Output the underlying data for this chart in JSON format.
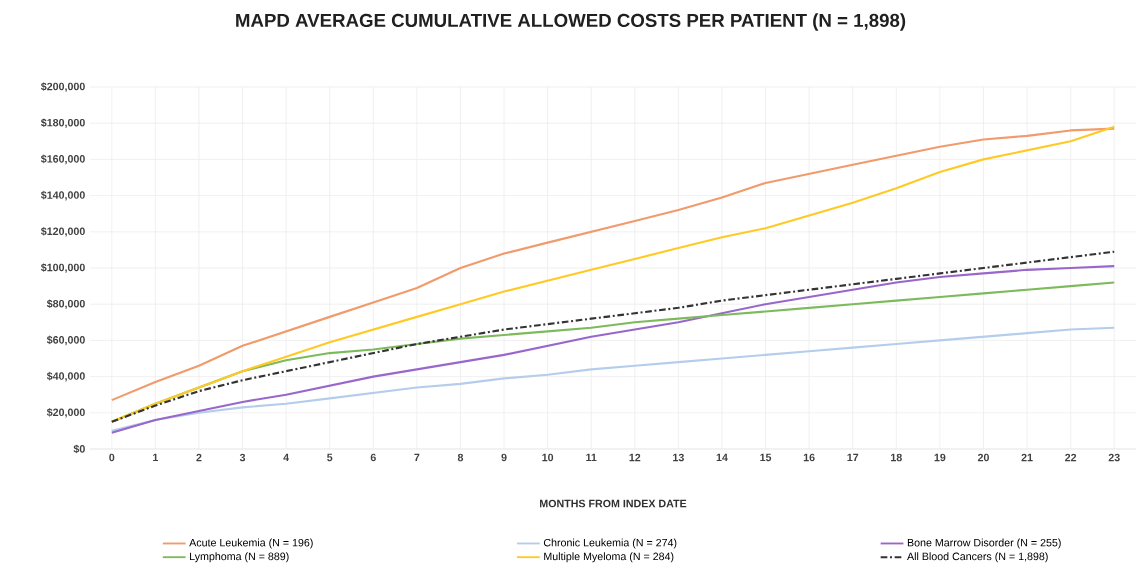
{
  "chart_data": {
    "type": "line",
    "title": "MAPD AVERAGE CUMULATIVE ALLOWED COSTS PER PATIENT (N = 1,898)",
    "xlabel": "MONTHS FROM INDEX DATE",
    "categories": [
      "0",
      "1",
      "2",
      "3",
      "4",
      "5",
      "6",
      "7",
      "8",
      "9",
      "10",
      "11",
      "12",
      "13",
      "14",
      "15",
      "16",
      "17",
      "18",
      "19",
      "20",
      "21",
      "22",
      "23"
    ],
    "series": [
      {
        "name": "Acute Leukemia (N = 196)",
        "color": "#f19a6b",
        "values": [
          27000,
          37000,
          46000,
          57000,
          65000,
          73000,
          81000,
          89000,
          100000,
          108000,
          114000,
          120000,
          126000,
          132000,
          139000,
          147000,
          152000,
          157000,
          162000,
          167000,
          171000,
          173000,
          176000,
          177000
        ]
      },
      {
        "name": "Chronic Leukemia (N = 274)",
        "color": "#b4cdec",
        "values": [
          10000,
          16000,
          20000,
          23000,
          25000,
          28000,
          31000,
          34000,
          36000,
          39000,
          41000,
          44000,
          46000,
          48000,
          50000,
          52000,
          54000,
          56000,
          58000,
          60000,
          62000,
          64000,
          66000,
          67000
        ]
      },
      {
        "name": "Bone Marrow Disorder (N = 255)",
        "color": "#9966cc",
        "values": [
          9000,
          16000,
          21000,
          26000,
          30000,
          35000,
          40000,
          44000,
          48000,
          52000,
          57000,
          62000,
          66000,
          70000,
          75000,
          80000,
          84000,
          88000,
          92000,
          95000,
          97000,
          99000,
          100000,
          101000
        ]
      },
      {
        "name": "Lymphoma (N = 889)",
        "color": "#7dba5c",
        "values": [
          15000,
          25000,
          34000,
          43000,
          49000,
          53000,
          55000,
          58000,
          61000,
          63000,
          65000,
          67000,
          70000,
          72000,
          74000,
          76000,
          78000,
          80000,
          82000,
          84000,
          86000,
          88000,
          90000,
          92000
        ]
      },
      {
        "name": "Multiple Myeloma (N = 284)",
        "color": "#ffc926",
        "values": [
          15000,
          25000,
          34000,
          43000,
          51000,
          59000,
          66000,
          73000,
          80000,
          87000,
          93000,
          99000,
          105000,
          111000,
          117000,
          122000,
          129000,
          136000,
          144000,
          153000,
          160000,
          165000,
          170000,
          178000
        ]
      },
      {
        "name": "All Blood Cancers (N = 1,898)",
        "color": "#333333",
        "line_style": "dashed",
        "values": [
          15000,
          24000,
          32000,
          38000,
          43000,
          48000,
          53000,
          58000,
          62000,
          66000,
          69000,
          72000,
          75000,
          78000,
          82000,
          85000,
          88000,
          91000,
          94000,
          97000,
          100000,
          103000,
          106000,
          109000
        ]
      }
    ],
    "ylim": [
      0,
      200000
    ],
    "yticks": [
      {
        "value": 0,
        "label": "$0"
      },
      {
        "value": 20000,
        "label": "$20,000"
      },
      {
        "value": 40000,
        "label": "$40,000"
      },
      {
        "value": 60000,
        "label": "$60,000"
      },
      {
        "value": 80000,
        "label": "$80,000"
      },
      {
        "value": 100000,
        "label": "$100,000"
      },
      {
        "value": 120000,
        "label": "$120,000"
      },
      {
        "value": 140000,
        "label": "$140,000"
      },
      {
        "value": 160000,
        "label": "$160,000"
      },
      {
        "value": 180000,
        "label": "$180,000"
      },
      {
        "value": 200000,
        "label": "$200,000"
      }
    ],
    "grid": true,
    "legend": "bottom",
    "marker": "none",
    "line_style": "solid"
  }
}
